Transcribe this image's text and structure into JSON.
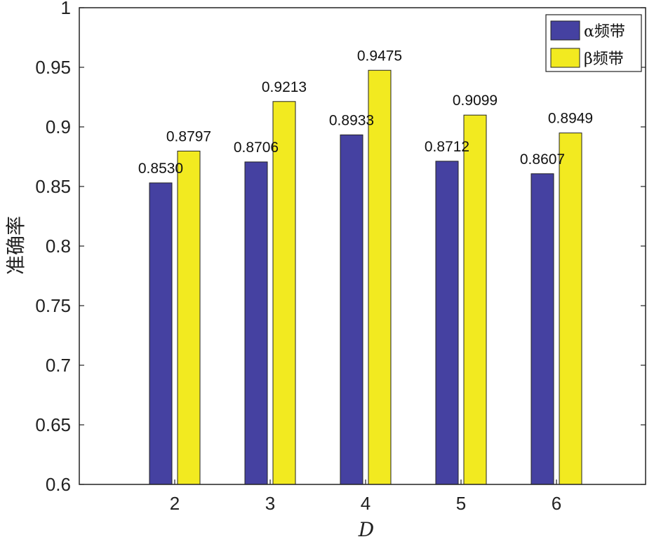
{
  "chart_data": {
    "type": "bar",
    "categories": [
      "2",
      "3",
      "4",
      "5",
      "6"
    ],
    "series": [
      {
        "name": "α频带",
        "values": [
          0.853,
          0.8706,
          0.8933,
          0.8712,
          0.8607
        ],
        "labels": [
          "0.8530",
          "0.8706",
          "0.8933",
          "0.8712",
          "0.8607"
        ],
        "color": "#4541a1"
      },
      {
        "name": "β频带",
        "values": [
          0.8797,
          0.9213,
          0.9475,
          0.9099,
          0.8949
        ],
        "labels": [
          "0.8797",
          "0.9213",
          "0.9475",
          "0.9099",
          "0.8949"
        ],
        "color": "#f2ea20"
      }
    ],
    "xlabel": "D",
    "ylabel": "准确率",
    "ylim": [
      0.6,
      1
    ],
    "yticks": [
      0.6,
      0.65,
      0.7,
      0.75,
      0.8,
      0.85,
      0.9,
      0.95,
      1
    ],
    "ytick_labels": [
      "0.6",
      "0.65",
      "0.7",
      "0.75",
      "0.8",
      "0.85",
      "0.9",
      "0.95",
      "1"
    ],
    "grid": false,
    "legend_position": "top-right"
  }
}
